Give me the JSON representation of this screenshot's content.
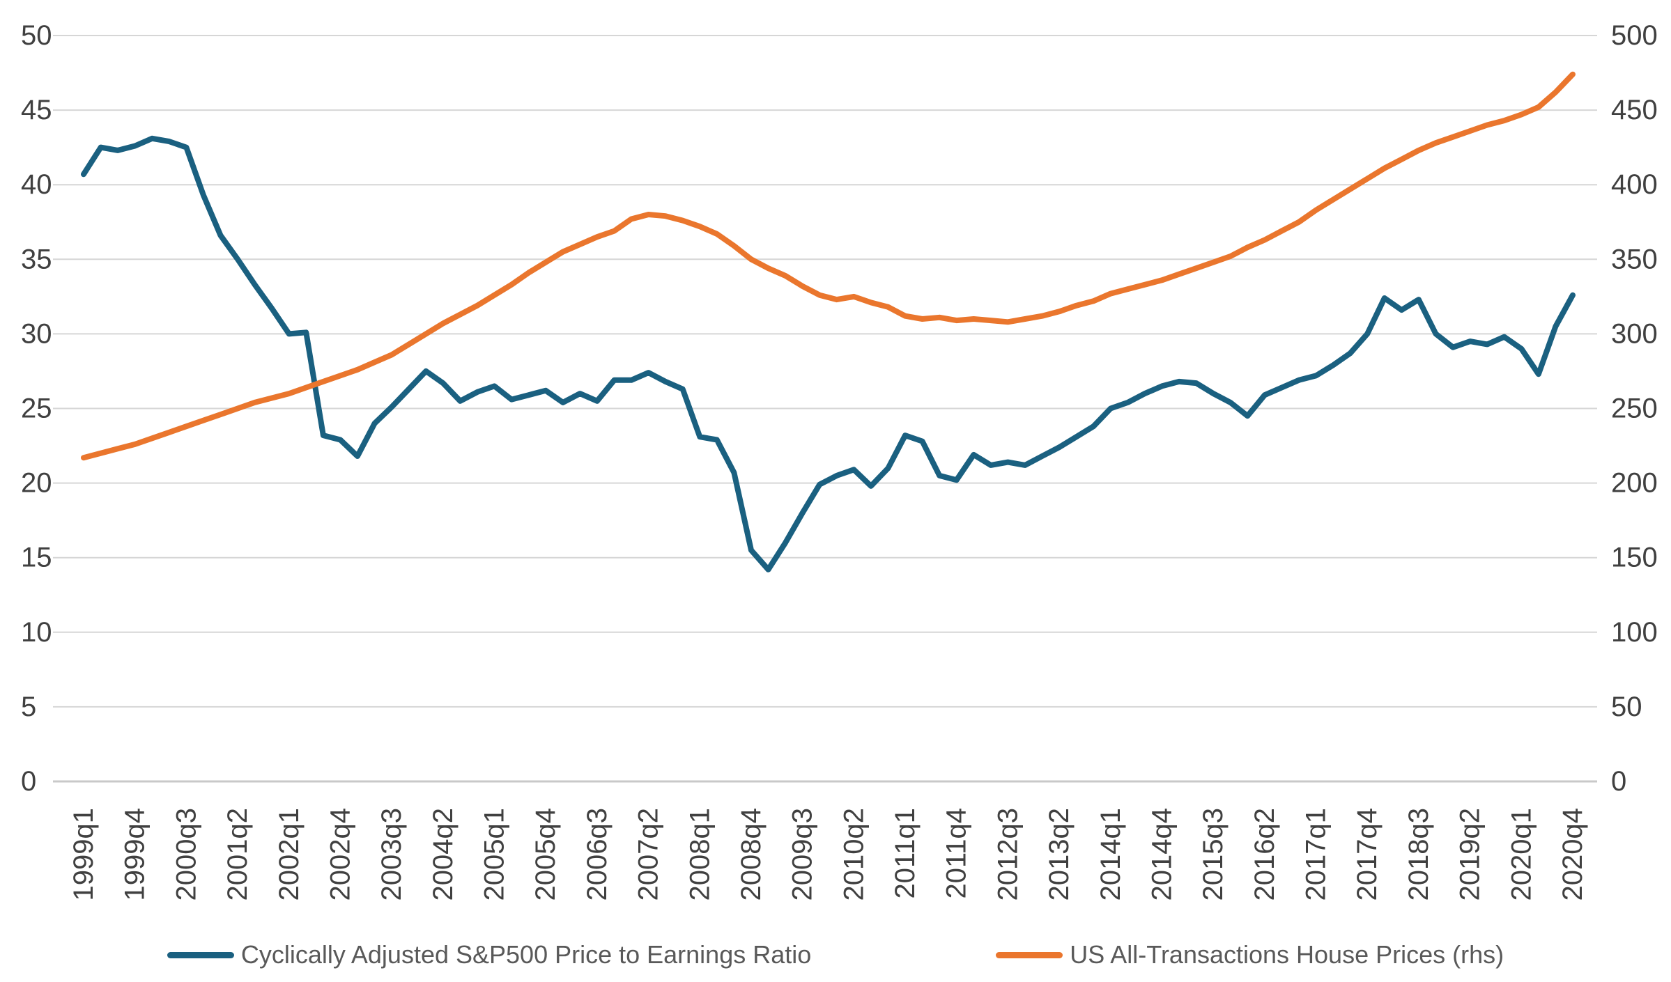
{
  "chart_data": {
    "type": "line",
    "title": "",
    "xlabel": "",
    "ylabel_left": "",
    "ylabel_right": "",
    "grid": true,
    "legend_position": "bottom",
    "x_tick_every": 3,
    "x_categories": [
      "1999q1",
      "1999q2",
      "1999q3",
      "1999q4",
      "2000q1",
      "2000q2",
      "2000q3",
      "2000q4",
      "2001q1",
      "2001q2",
      "2001q3",
      "2001q4",
      "2002q1",
      "2002q2",
      "2002q3",
      "2002q4",
      "2003q1",
      "2003q2",
      "2003q3",
      "2003q4",
      "2004q1",
      "2004q2",
      "2004q3",
      "2004q4",
      "2005q1",
      "2005q2",
      "2005q3",
      "2005q4",
      "2006q1",
      "2006q2",
      "2006q3",
      "2006q4",
      "2007q1",
      "2007q2",
      "2007q3",
      "2007q4",
      "2008q1",
      "2008q2",
      "2008q3",
      "2008q4",
      "2009q1",
      "2009q2",
      "2009q3",
      "2009q4",
      "2010q1",
      "2010q2",
      "2010q3",
      "2010q4",
      "2011q1",
      "2011q2",
      "2011q3",
      "2011q4",
      "2012q1",
      "2012q2",
      "2012q3",
      "2012q4",
      "2013q1",
      "2013q2",
      "2013q3",
      "2013q4",
      "2014q1",
      "2014q2",
      "2014q3",
      "2014q4",
      "2015q1",
      "2015q2",
      "2015q3",
      "2015q4",
      "2016q1",
      "2016q2",
      "2016q3",
      "2016q4",
      "2017q1",
      "2017q2",
      "2017q3",
      "2017q4",
      "2018q1",
      "2018q2",
      "2018q3",
      "2018q4",
      "2019q1",
      "2019q2",
      "2019q3",
      "2019q4",
      "2020q1",
      "2020q2",
      "2020q3",
      "2020q4"
    ],
    "y_left": {
      "min": 0,
      "max": 50,
      "step": 5,
      "tick_labels": [
        "0",
        "5",
        "10",
        "15",
        "20",
        "25",
        "30",
        "35",
        "40",
        "45",
        "50"
      ]
    },
    "y_right": {
      "min": 0,
      "max": 500,
      "step": 50,
      "tick_labels": [
        "0",
        "50",
        "100",
        "150",
        "200",
        "250",
        "300",
        "350",
        "400",
        "450",
        "500"
      ]
    },
    "series": [
      {
        "name": "Cyclically Adjusted S&P500 Price to Earnings Ratio",
        "axis": "left",
        "color": "#1A6080",
        "values": [
          40.7,
          42.5,
          42.3,
          42.6,
          43.1,
          42.9,
          42.5,
          39.3,
          36.6,
          35.0,
          33.3,
          31.7,
          30.0,
          30.1,
          23.2,
          22.9,
          21.8,
          24.0,
          25.1,
          26.3,
          27.5,
          26.7,
          25.5,
          26.1,
          26.5,
          25.6,
          25.9,
          26.2,
          25.4,
          26.0,
          25.5,
          26.9,
          26.9,
          27.4,
          26.8,
          26.3,
          23.1,
          22.9,
          20.7,
          15.5,
          14.2,
          16.0,
          18.0,
          19.9,
          20.5,
          20.9,
          19.8,
          21.0,
          23.2,
          22.8,
          20.5,
          20.2,
          21.9,
          21.2,
          21.4,
          21.2,
          21.8,
          22.4,
          23.1,
          23.8,
          25.0,
          25.4,
          26.0,
          26.5,
          26.8,
          26.7,
          26.0,
          25.4,
          24.5,
          25.9,
          26.4,
          26.9,
          27.2,
          27.9,
          28.7,
          30.0,
          32.4,
          31.6,
          32.3,
          30.0,
          29.1,
          29.5,
          29.3,
          29.8,
          29.0,
          27.3,
          30.5,
          32.6
        ]
      },
      {
        "name": "US All-Transactions House Prices (rhs)",
        "axis": "right",
        "color": "#EA762D",
        "values": [
          217,
          220,
          223,
          226,
          230,
          234,
          238,
          242,
          246,
          250,
          254,
          257,
          260,
          264,
          268,
          272,
          276,
          281,
          286,
          293,
          300,
          307,
          313,
          319,
          326,
          333,
          341,
          348,
          355,
          360,
          365,
          369,
          377,
          380,
          379,
          376,
          372,
          367,
          359,
          350,
          344,
          339,
          332,
          326,
          323,
          325,
          321,
          318,
          312,
          310,
          311,
          309,
          310,
          309,
          308,
          310,
          312,
          315,
          319,
          322,
          327,
          330,
          333,
          336,
          340,
          344,
          348,
          352,
          358,
          363,
          369,
          375,
          383,
          390,
          397,
          404,
          411,
          417,
          423,
          428,
          432,
          436,
          440,
          443,
          447,
          452,
          462,
          474
        ]
      }
    ],
    "style": {
      "gridline_color": "#D6D6D6",
      "axis_line_color": "#C9C9C9",
      "tick_label_color": "#404040",
      "legend_text_color": "#595959",
      "line_width": 8
    }
  },
  "legend": {
    "items": [
      {
        "label": "Cyclically Adjusted S&P500 Price to Earnings Ratio"
      },
      {
        "label": "US All-Transactions House Prices (rhs)"
      }
    ]
  }
}
